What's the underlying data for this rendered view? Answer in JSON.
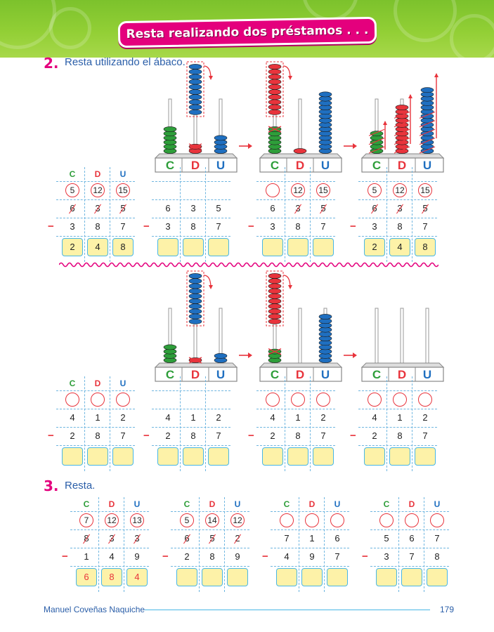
{
  "header": {
    "title": "Resta realizando dos préstamos . . ."
  },
  "section2": {
    "number": "2.",
    "instruction": "Resta utilizando el ábaco."
  },
  "section3": {
    "number": "3.",
    "instruction": "Resta."
  },
  "abacus": {
    "labels": [
      "C",
      "D",
      "U"
    ]
  },
  "tables": [
    {
      "headers": [
        "C",
        "D",
        "U"
      ],
      "circled": [
        "5",
        "12",
        "15"
      ],
      "top": [
        "6",
        "3",
        "5"
      ],
      "top_struck": [
        true,
        true,
        true
      ],
      "minus": "−",
      "subtrahend": [
        "3",
        "8",
        "7"
      ],
      "result": [
        "2",
        "4",
        "8"
      ],
      "result_color": "#222222"
    },
    {
      "headers": null,
      "circled": null,
      "top": [
        "6",
        "3",
        "5"
      ],
      "top_struck": [
        false,
        false,
        false
      ],
      "minus": "−",
      "subtrahend": [
        "3",
        "8",
        "7"
      ],
      "result": [
        "",
        "",
        ""
      ],
      "result_color": "#222222"
    },
    {
      "headers": null,
      "circled": [
        "",
        "12",
        "15"
      ],
      "top": [
        "6",
        "3",
        "5"
      ],
      "top_struck": [
        false,
        true,
        true
      ],
      "minus": "−",
      "subtrahend": [
        "3",
        "8",
        "7"
      ],
      "result": [
        "",
        "",
        ""
      ],
      "result_color": "#222222"
    },
    {
      "headers": null,
      "circled": [
        "5",
        "12",
        "15"
      ],
      "top": [
        "6",
        "3",
        "5"
      ],
      "top_struck": [
        true,
        true,
        true
      ],
      "minus": "−",
      "subtrahend": [
        "3",
        "8",
        "7"
      ],
      "result": [
        "2",
        "4",
        "8"
      ],
      "result_color": "#222222"
    },
    {
      "headers": [
        "C",
        "D",
        "U"
      ],
      "circled": [
        "",
        "",
        ""
      ],
      "top": [
        "4",
        "1",
        "2"
      ],
      "top_struck": [
        false,
        false,
        false
      ],
      "minus": "−",
      "subtrahend": [
        "2",
        "8",
        "7"
      ],
      "result": [
        "",
        "",
        ""
      ],
      "result_color": "#222222"
    },
    {
      "headers": null,
      "circled": null,
      "top": [
        "4",
        "1",
        "2"
      ],
      "top_struck": [
        false,
        false,
        false
      ],
      "minus": "−",
      "subtrahend": [
        "2",
        "8",
        "7"
      ],
      "result": [
        "",
        "",
        ""
      ],
      "result_color": "#222222"
    },
    {
      "headers": null,
      "circled": [
        "",
        "",
        ""
      ],
      "top": [
        "4",
        "1",
        "2"
      ],
      "top_struck": [
        false,
        false,
        false
      ],
      "minus": "−",
      "subtrahend": [
        "2",
        "8",
        "7"
      ],
      "result": [
        "",
        "",
        ""
      ],
      "result_color": "#222222"
    },
    {
      "headers": null,
      "circled": [
        "",
        "",
        ""
      ],
      "top": [
        "4",
        "1",
        "2"
      ],
      "top_struck": [
        false,
        false,
        false
      ],
      "minus": "−",
      "subtrahend": [
        "2",
        "8",
        "7"
      ],
      "result": [
        "",
        "",
        ""
      ],
      "result_color": "#222222"
    },
    {
      "headers": [
        "C",
        "D",
        "U"
      ],
      "circled": [
        "7",
        "12",
        "13"
      ],
      "top": [
        "8",
        "3",
        "3"
      ],
      "top_struck": [
        true,
        true,
        true
      ],
      "minus": "−",
      "subtrahend": [
        "1",
        "4",
        "9"
      ],
      "result": [
        "6",
        "8",
        "4"
      ],
      "result_color": "#e8343c"
    },
    {
      "headers": [
        "C",
        "D",
        "U"
      ],
      "circled": [
        "5",
        "14",
        "12"
      ],
      "top": [
        "6",
        "5",
        "2"
      ],
      "top_struck": [
        true,
        true,
        true
      ],
      "minus": "−",
      "subtrahend": [
        "2",
        "8",
        "9"
      ],
      "result": [
        "",
        "",
        ""
      ],
      "result_color": "#222222"
    },
    {
      "headers": [
        "C",
        "D",
        "U"
      ],
      "circled": [
        "",
        "",
        ""
      ],
      "top": [
        "7",
        "1",
        "6"
      ],
      "top_struck": [
        false,
        false,
        false
      ],
      "minus": "−",
      "subtrahend": [
        "4",
        "9",
        "7"
      ],
      "result": [
        "",
        "",
        ""
      ],
      "result_color": "#222222"
    },
    {
      "headers": [
        "C",
        "D",
        "U"
      ],
      "circled": [
        "",
        "",
        ""
      ],
      "top": [
        "5",
        "6",
        "7"
      ],
      "top_struck": [
        false,
        false,
        false
      ],
      "minus": "−",
      "subtrahend": [
        "3",
        "7",
        "8"
      ],
      "result": [
        "",
        "",
        ""
      ],
      "result_color": "#222222"
    }
  ],
  "colors": {
    "C": "#2e9e3a",
    "D": "#e8343c",
    "U": "#1f6fc0",
    "accent": "#e4007d",
    "grid": "#6fb6e0"
  },
  "footer": {
    "author": "Manuel Coveñas Naquiche",
    "page": "179"
  }
}
